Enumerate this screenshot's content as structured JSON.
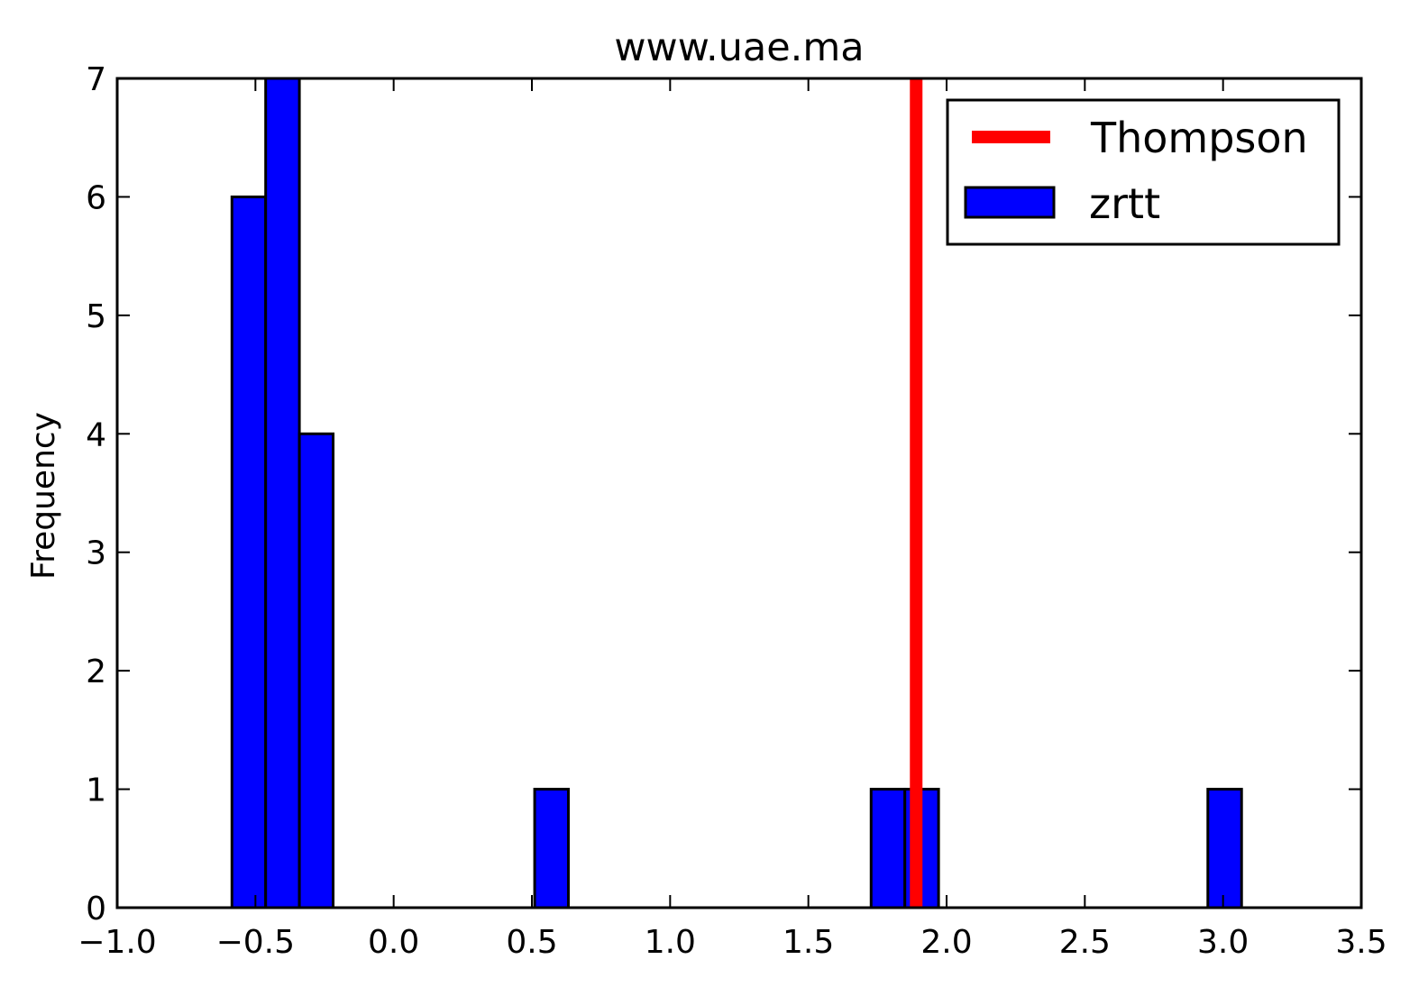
{
  "chart_data": {
    "type": "bar",
    "title": "www.uae.ma",
    "xlabel": "",
    "ylabel": "Frequency",
    "xlim": [
      -1.0,
      3.5
    ],
    "ylim": [
      0,
      7
    ],
    "x_ticks": [
      "−1.0",
      "−0.5",
      "0.0",
      "0.5",
      "1.0",
      "1.5",
      "2.0",
      "2.5",
      "3.0",
      "3.5"
    ],
    "y_ticks": [
      "0",
      "1",
      "2",
      "3",
      "4",
      "5",
      "6",
      "7"
    ],
    "grid": false,
    "legend_position": "top-right",
    "series": [
      {
        "name": "zrtt",
        "color": "#0000ff",
        "bins": [
          {
            "x0": -0.585,
            "x1": -0.463,
            "count": 6
          },
          {
            "x0": -0.463,
            "x1": -0.341,
            "count": 7
          },
          {
            "x0": -0.341,
            "x1": -0.219,
            "count": 4
          },
          {
            "x0": 0.51,
            "x1": 0.632,
            "count": 1
          },
          {
            "x0": 1.727,
            "x1": 1.849,
            "count": 1
          },
          {
            "x0": 1.849,
            "x1": 1.971,
            "count": 1
          },
          {
            "x0": 2.945,
            "x1": 3.067,
            "count": 1
          }
        ]
      },
      {
        "name": "Thompson",
        "color": "#ff0000",
        "type": "vline",
        "x": 1.89
      }
    ]
  }
}
